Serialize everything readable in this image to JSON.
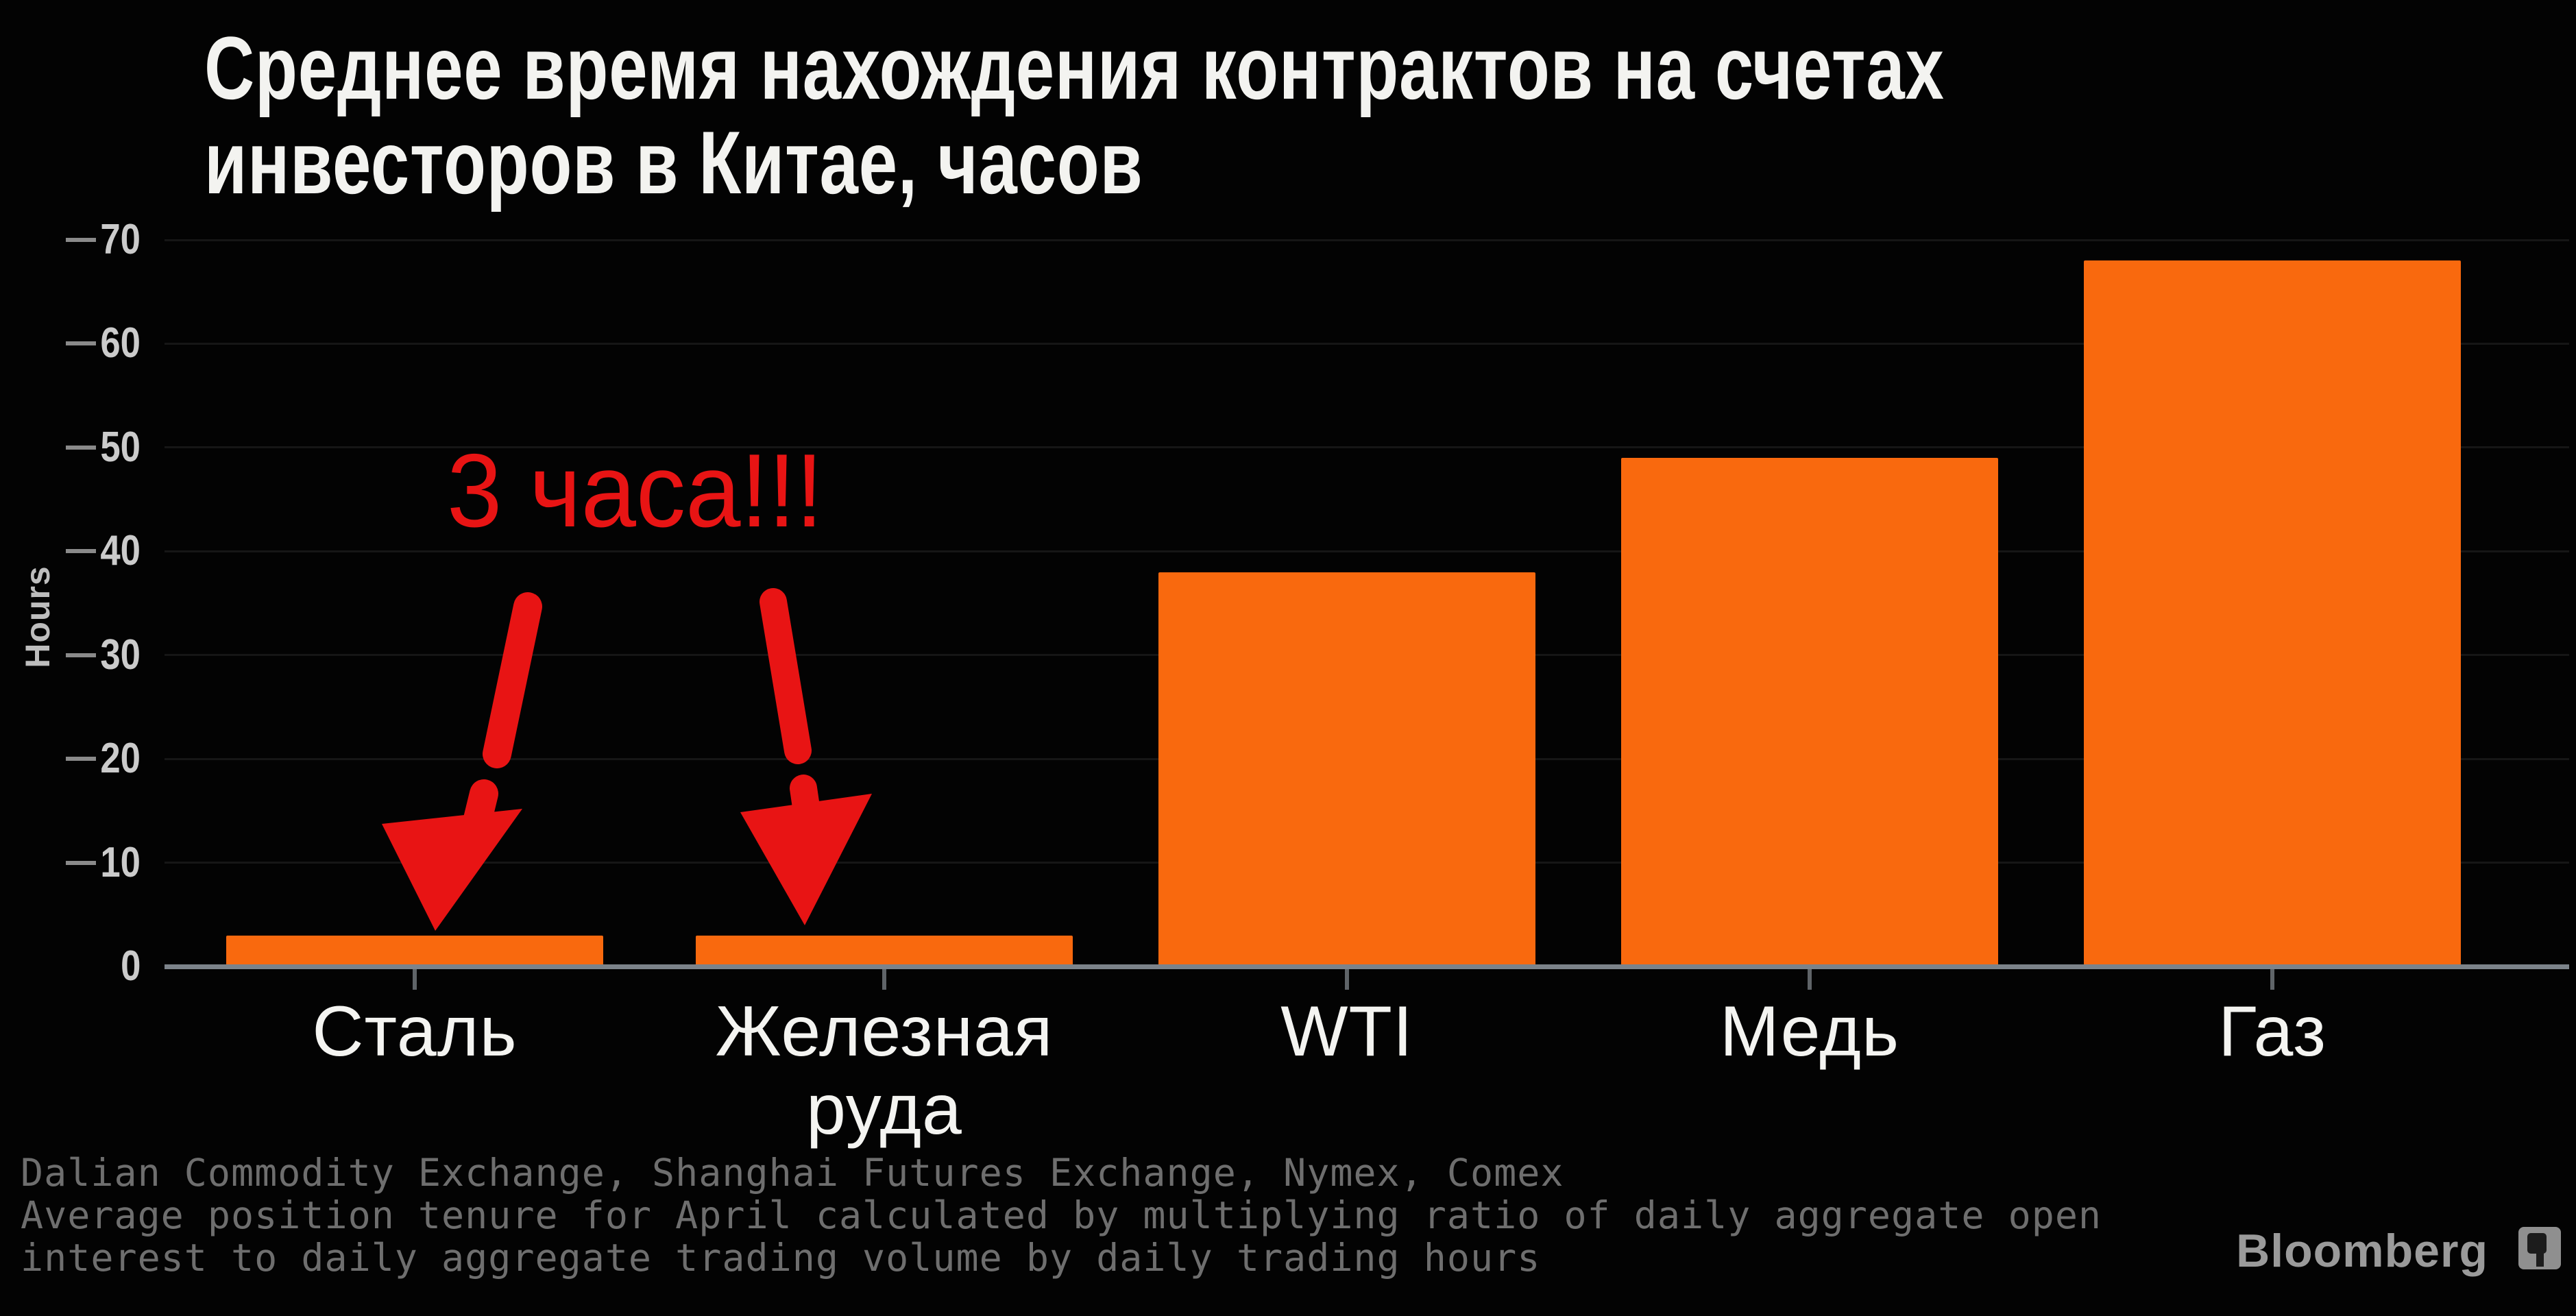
{
  "header": {
    "line1": "Среднее время нахождения контрактов на счетах",
    "line2": "инвесторов в Китае, часов"
  },
  "annotation": {
    "label": "3 часа!!!",
    "color": "#e81414",
    "arrow_count": 2,
    "targets": [
      "Сталь",
      "Железная руда"
    ]
  },
  "chart_data": {
    "type": "bar",
    "title": "Среднее время нахождения контрактов на счетах инвесторов в Китае, часов",
    "xlabel": "",
    "ylabel": "Hours",
    "categories": [
      "Сталь",
      "Железная руда",
      "WTI",
      "Медь",
      "Газ"
    ],
    "values": [
      3,
      3,
      38,
      49,
      68
    ],
    "ylim": [
      0,
      70
    ],
    "yticks": [
      0,
      10,
      20,
      30,
      40,
      50,
      60,
      70
    ],
    "grid": true,
    "legend": false,
    "bar_color": "#f9690e",
    "background": "#030303",
    "annotation_text": "3 часа!!!"
  },
  "footer": {
    "source_line": "Dalian Commodity Exchange, Shanghai Futures Exchange, Nymex, Comex",
    "note_line1": "Average position tenure for April calculated by multiplying ratio of daily aggregate open",
    "note_line2": "interest to daily aggregate trading volume by daily trading hours",
    "brand": "Bloomberg"
  }
}
